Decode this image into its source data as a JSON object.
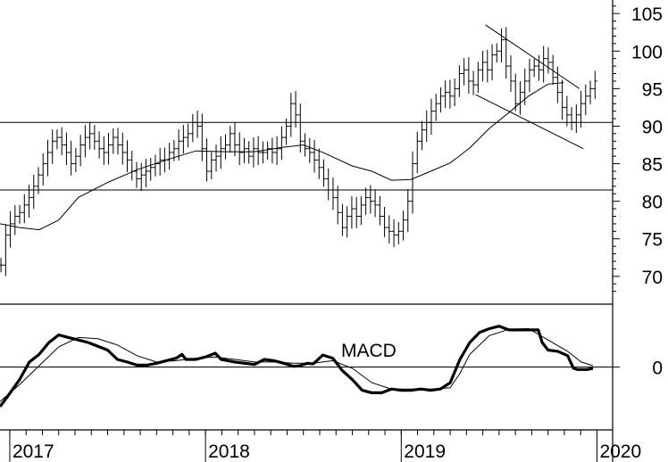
{
  "chart_data": [
    {
      "type": "ohlc",
      "panel": "price",
      "y_ticks": [
        "105",
        "100",
        "95",
        "90",
        "85",
        "80",
        "75",
        "70"
      ],
      "y_tick_values": [
        105,
        100,
        95,
        90,
        85,
        80,
        75,
        70
      ],
      "ylim": [
        66.3,
        106.8
      ],
      "horizontal_lines": [
        90.5,
        81.5
      ],
      "trend_channel": {
        "upper": [
          {
            "x": 2019.43,
            "y": 103.5
          },
          {
            "x": 2019.91,
            "y": 95
          }
        ],
        "lower": [
          {
            "x": 2019.38,
            "y": 94.2
          },
          {
            "x": 2019.93,
            "y": 87
          }
        ]
      },
      "moving_average": [
        {
          "x": 2016.95,
          "y": 77
        },
        {
          "x": 2017.05,
          "y": 76.5
        },
        {
          "x": 2017.15,
          "y": 76.2
        },
        {
          "x": 2017.25,
          "y": 77.5
        },
        {
          "x": 2017.35,
          "y": 80.5
        },
        {
          "x": 2017.5,
          "y": 82.5
        },
        {
          "x": 2017.65,
          "y": 84.2
        },
        {
          "x": 2017.8,
          "y": 85.5
        },
        {
          "x": 2017.95,
          "y": 86.7
        },
        {
          "x": 2018.1,
          "y": 86.6
        },
        {
          "x": 2018.25,
          "y": 86.6
        },
        {
          "x": 2018.4,
          "y": 87.2
        },
        {
          "x": 2018.5,
          "y": 87.5
        },
        {
          "x": 2018.6,
          "y": 86.5
        },
        {
          "x": 2018.75,
          "y": 84.7
        },
        {
          "x": 2018.85,
          "y": 84
        },
        {
          "x": 2018.95,
          "y": 82.8
        },
        {
          "x": 2019.05,
          "y": 82.9
        },
        {
          "x": 2019.15,
          "y": 84
        },
        {
          "x": 2019.25,
          "y": 85.1
        },
        {
          "x": 2019.35,
          "y": 87.1
        },
        {
          "x": 2019.45,
          "y": 89.7
        },
        {
          "x": 2019.55,
          "y": 91.8
        },
        {
          "x": 2019.65,
          "y": 94
        },
        {
          "x": 2019.75,
          "y": 95.6
        },
        {
          "x": 2019.83,
          "y": 95.8
        }
      ],
      "weekly_closes": [
        71.5,
        75.5,
        77,
        78,
        78.5,
        79.5,
        80.5,
        82,
        83.5,
        85,
        86.5,
        88,
        88.5,
        87.5,
        86.5,
        85,
        86,
        87.5,
        88.5,
        89,
        88,
        87,
        86.5,
        87.5,
        88.5,
        87.5,
        86.5,
        85.5,
        84,
        83,
        83.5,
        84,
        84.5,
        85,
        85.5,
        85.5,
        86.5,
        87,
        88,
        88.5,
        89,
        90.5,
        90,
        87,
        84,
        85.5,
        86,
        87,
        87.5,
        89,
        87.5,
        86.5,
        87,
        86,
        87,
        86.5,
        86.5,
        87,
        86.5,
        87,
        88.5,
        90,
        93,
        91.5,
        88,
        87,
        86.5,
        85.5,
        84.5,
        83,
        81.5,
        80.5,
        78.5,
        76.5,
        78,
        79,
        78,
        79.5,
        80.5,
        80,
        79.5,
        78,
        76.5,
        76,
        75.5,
        76,
        77.5,
        80,
        85,
        88,
        89.5,
        90.5,
        92,
        93,
        94,
        94.5,
        94,
        95,
        97,
        97.5,
        96,
        95.5,
        97.5,
        98.5,
        97.5,
        99.5,
        100,
        101.5,
        98,
        96,
        93,
        94.5,
        96,
        97.5,
        98,
        97.5,
        99,
        98.5,
        96.5,
        94.5,
        92.5,
        91.5,
        90.5,
        91.5,
        93,
        94,
        95,
        96
      ]
    },
    {
      "type": "line",
      "panel": "indicator",
      "label": "MACD",
      "y_ticks": [
        "0"
      ],
      "y_tick_values": [
        0
      ],
      "ylim": [
        -1,
        1
      ],
      "series": [
        {
          "style": "bold",
          "points": [
            {
              "x": 2016.95,
              "y": -0.63
            },
            {
              "x": 2017.0,
              "y": -0.42
            },
            {
              "x": 2017.05,
              "y": -0.2
            },
            {
              "x": 2017.1,
              "y": 0.08
            },
            {
              "x": 2017.15,
              "y": 0.2
            },
            {
              "x": 2017.2,
              "y": 0.39
            },
            {
              "x": 2017.25,
              "y": 0.51
            },
            {
              "x": 2017.3,
              "y": 0.47
            },
            {
              "x": 2017.35,
              "y": 0.43
            },
            {
              "x": 2017.4,
              "y": 0.39
            },
            {
              "x": 2017.45,
              "y": 0.33
            },
            {
              "x": 2017.5,
              "y": 0.27
            },
            {
              "x": 2017.55,
              "y": 0.12
            },
            {
              "x": 2017.6,
              "y": 0.08
            },
            {
              "x": 2017.65,
              "y": 0.03
            },
            {
              "x": 2017.7,
              "y": 0.03
            },
            {
              "x": 2017.75,
              "y": 0.06
            },
            {
              "x": 2017.8,
              "y": 0.1
            },
            {
              "x": 2017.85,
              "y": 0.14
            },
            {
              "x": 2017.88,
              "y": 0.2
            },
            {
              "x": 2017.9,
              "y": 0.12
            },
            {
              "x": 2017.95,
              "y": 0.12
            },
            {
              "x": 2018.0,
              "y": 0.16
            },
            {
              "x": 2018.05,
              "y": 0.22
            },
            {
              "x": 2018.08,
              "y": 0.12
            },
            {
              "x": 2018.15,
              "y": 0.08
            },
            {
              "x": 2018.2,
              "y": 0.06
            },
            {
              "x": 2018.25,
              "y": 0.04
            },
            {
              "x": 2018.3,
              "y": 0.12
            },
            {
              "x": 2018.35,
              "y": 0.1
            },
            {
              "x": 2018.4,
              "y": 0.06
            },
            {
              "x": 2018.45,
              "y": 0.01
            },
            {
              "x": 2018.48,
              "y": 0.02
            },
            {
              "x": 2018.52,
              "y": 0.06
            },
            {
              "x": 2018.55,
              "y": 0.05
            },
            {
              "x": 2018.6,
              "y": 0.19
            },
            {
              "x": 2018.65,
              "y": 0.14
            },
            {
              "x": 2018.7,
              "y": -0.06
            },
            {
              "x": 2018.75,
              "y": -0.2
            },
            {
              "x": 2018.8,
              "y": -0.37
            },
            {
              "x": 2018.85,
              "y": -0.41
            },
            {
              "x": 2018.9,
              "y": -0.41
            },
            {
              "x": 2018.95,
              "y": -0.35
            },
            {
              "x": 2019.0,
              "y": -0.37
            },
            {
              "x": 2019.05,
              "y": -0.37
            },
            {
              "x": 2019.1,
              "y": -0.35
            },
            {
              "x": 2019.15,
              "y": -0.37
            },
            {
              "x": 2019.2,
              "y": -0.35
            },
            {
              "x": 2019.25,
              "y": -0.25
            },
            {
              "x": 2019.3,
              "y": 0.12
            },
            {
              "x": 2019.35,
              "y": 0.39
            },
            {
              "x": 2019.4,
              "y": 0.55
            },
            {
              "x": 2019.45,
              "y": 0.61
            },
            {
              "x": 2019.5,
              "y": 0.65
            },
            {
              "x": 2019.55,
              "y": 0.59
            },
            {
              "x": 2019.6,
              "y": 0.59
            },
            {
              "x": 2019.65,
              "y": 0.59
            },
            {
              "x": 2019.7,
              "y": 0.59
            },
            {
              "x": 2019.72,
              "y": 0.39
            },
            {
              "x": 2019.75,
              "y": 0.27
            },
            {
              "x": 2019.8,
              "y": 0.25
            },
            {
              "x": 2019.85,
              "y": 0.18
            },
            {
              "x": 2019.88,
              "y": -0.02
            },
            {
              "x": 2019.9,
              "y": -0.04
            },
            {
              "x": 2019.95,
              "y": -0.04
            },
            {
              "x": 2019.98,
              "y": -0.02
            }
          ]
        },
        {
          "style": "thin",
          "points": [
            {
              "x": 2016.95,
              "y": -0.55
            },
            {
              "x": 2017.05,
              "y": -0.28
            },
            {
              "x": 2017.15,
              "y": 0.02
            },
            {
              "x": 2017.25,
              "y": 0.32
            },
            {
              "x": 2017.35,
              "y": 0.47
            },
            {
              "x": 2017.45,
              "y": 0.45
            },
            {
              "x": 2017.55,
              "y": 0.35
            },
            {
              "x": 2017.65,
              "y": 0.18
            },
            {
              "x": 2017.75,
              "y": 0.08
            },
            {
              "x": 2017.85,
              "y": 0.1
            },
            {
              "x": 2017.95,
              "y": 0.14
            },
            {
              "x": 2018.05,
              "y": 0.16
            },
            {
              "x": 2018.15,
              "y": 0.12
            },
            {
              "x": 2018.25,
              "y": 0.08
            },
            {
              "x": 2018.35,
              "y": 0.08
            },
            {
              "x": 2018.45,
              "y": 0.06
            },
            {
              "x": 2018.55,
              "y": 0.06
            },
            {
              "x": 2018.65,
              "y": 0.1
            },
            {
              "x": 2018.75,
              "y": -0.02
            },
            {
              "x": 2018.85,
              "y": -0.25
            },
            {
              "x": 2018.95,
              "y": -0.35
            },
            {
              "x": 2019.05,
              "y": -0.35
            },
            {
              "x": 2019.15,
              "y": -0.35
            },
            {
              "x": 2019.25,
              "y": -0.33
            },
            {
              "x": 2019.3,
              "y": -0.1
            },
            {
              "x": 2019.35,
              "y": 0.2
            },
            {
              "x": 2019.45,
              "y": 0.5
            },
            {
              "x": 2019.55,
              "y": 0.6
            },
            {
              "x": 2019.65,
              "y": 0.61
            },
            {
              "x": 2019.75,
              "y": 0.43
            },
            {
              "x": 2019.85,
              "y": 0.25
            },
            {
              "x": 2019.92,
              "y": 0.08
            },
            {
              "x": 2019.98,
              "y": 0.02
            }
          ]
        }
      ]
    }
  ],
  "x_axis": {
    "labels": [
      {
        "text": "2017",
        "x": 2017.0
      },
      {
        "text": "2018",
        "x": 2018.0
      },
      {
        "text": "2019",
        "x": 2019.0
      },
      {
        "text": "2020",
        "x": 2020.0
      }
    ],
    "range": [
      2016.95,
      2020.08
    ]
  },
  "macd_label": "MACD"
}
